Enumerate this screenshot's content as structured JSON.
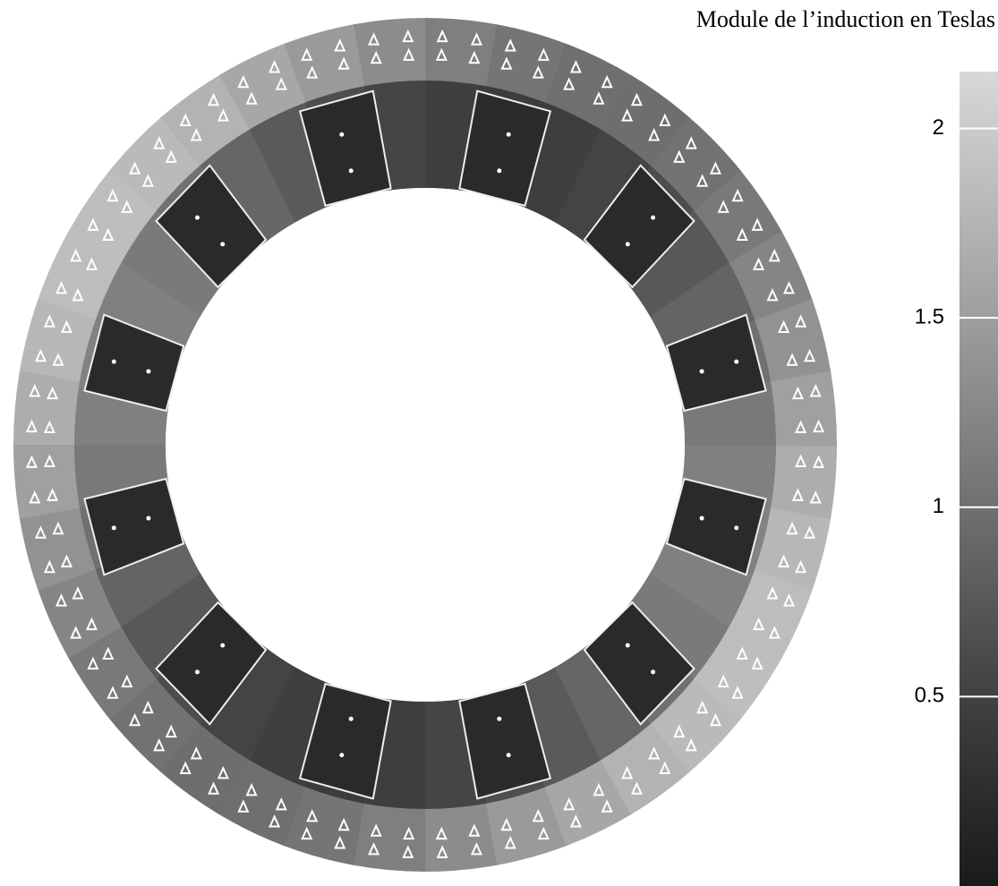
{
  "title": "Module de l’induction en Teslas",
  "colorbar": {
    "lim": [
      0,
      2.15
    ],
    "ticks": [
      0.5,
      1,
      1.5,
      2
    ]
  }
}
